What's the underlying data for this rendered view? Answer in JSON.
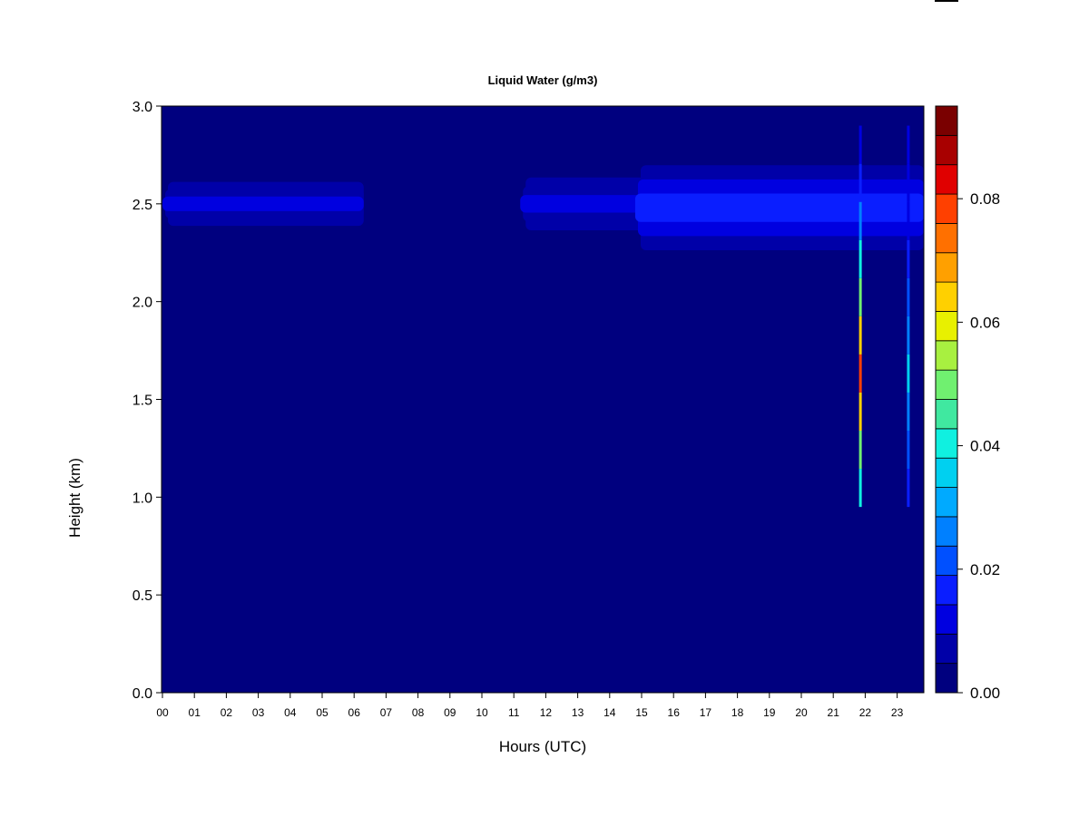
{
  "chart_data": {
    "type": "heatmap",
    "title": "Liquid Water (g/m3)",
    "xlabel": "Hours (UTC)",
    "ylabel": "Height (km)",
    "xlim": [
      0,
      23.9
    ],
    "ylim": [
      0.0,
      3.0
    ],
    "x_ticks": [
      "00",
      "01",
      "02",
      "03",
      "04",
      "05",
      "06",
      "07",
      "08",
      "09",
      "10",
      "11",
      "12",
      "13",
      "14",
      "15",
      "16",
      "17",
      "18",
      "19",
      "20",
      "21",
      "22",
      "23"
    ],
    "y_ticks": [
      "0.0",
      "0.5",
      "1.0",
      "1.5",
      "2.0",
      "2.5",
      "3.0"
    ],
    "colorbar": {
      "range": [
        0.0,
        0.095
      ],
      "tick_labels": [
        "0.00",
        "0.02",
        "0.04",
        "0.06",
        "0.08"
      ],
      "tick_values": [
        0.0,
        0.02,
        0.04,
        0.06,
        0.08
      ],
      "levels": [
        0.0,
        0.005,
        0.01,
        0.015,
        0.02,
        0.025,
        0.03,
        0.035,
        0.04,
        0.045,
        0.05,
        0.055,
        0.06,
        0.065,
        0.07,
        0.075,
        0.08,
        0.085,
        0.09,
        0.095
      ],
      "colors": [
        "#00007F",
        "#0000A8",
        "#0000E0",
        "#0A1EFF",
        "#0050FF",
        "#0080FF",
        "#00AAFF",
        "#00D0F0",
        "#10F0E0",
        "#40E8A0",
        "#70F070",
        "#A8F040",
        "#E8F000",
        "#FFD000",
        "#FFA000",
        "#FF7000",
        "#FF4000",
        "#E00000",
        "#A80000",
        "#7A0000"
      ]
    },
    "cloud_layers": [
      {
        "x_start": 0.0,
        "x_end": 6.3,
        "y_bottom": 2.35,
        "y_top": 2.65,
        "peak_value": 0.013,
        "peak_height": 2.5
      },
      {
        "x_start": 11.2,
        "x_end": 23.9,
        "y_bottom": 2.32,
        "y_top": 2.68,
        "peak_value": 0.012,
        "peak_height": 2.5
      },
      {
        "x_start": 14.8,
        "x_end": 23.9,
        "y_bottom": 2.1,
        "y_top": 2.68,
        "peak_value": 0.017,
        "peak_height": 2.48
      }
    ],
    "spikes": [
      {
        "x": 21.85,
        "y_bottom": 0.95,
        "y_top": 2.9,
        "peak_value": 0.08
      },
      {
        "x": 23.35,
        "y_bottom": 0.95,
        "y_top": 2.9,
        "peak_value": 0.035
      }
    ]
  }
}
